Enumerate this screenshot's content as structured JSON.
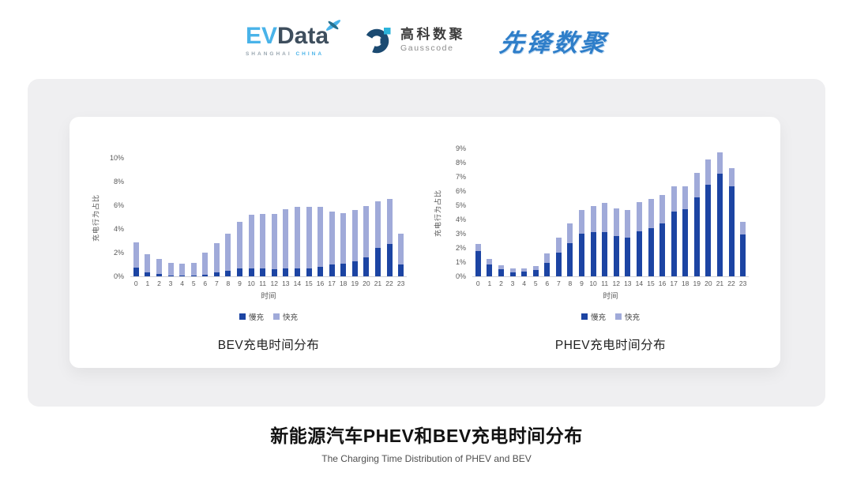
{
  "header": {
    "evdata": {
      "ev": "EV",
      "data": "Data",
      "sub_left": "SHANGHAI",
      "sub_right": "CHINA"
    },
    "gausscode": {
      "cn": "高科数聚",
      "en": "Gausscode"
    },
    "xianfeng": {
      "text": "先锋数聚"
    }
  },
  "footer": {
    "title": "新能源汽车PHEV和BEV充电时间分布",
    "subtitle": "The Charging Time Distribution of PHEV and BEV"
  },
  "colors": {
    "slow_charge": "#1c44a3",
    "fast_charge": "#a0aad9",
    "panel_gray": "#efeff1",
    "evdata_blue": "#49b3e9",
    "evdata_navy": "#3e4e5d",
    "xianfeng_blue": "#2e7ec9"
  },
  "chart_data": [
    {
      "type": "bar",
      "stacked": true,
      "title": "BEV充电时间分布",
      "ylabel": "充电行为占比",
      "xlabel": "时间",
      "legend_position": "bottom",
      "grid": false,
      "categories": [
        "0",
        "1",
        "2",
        "3",
        "4",
        "5",
        "6",
        "7",
        "8",
        "9",
        "10",
        "11",
        "12",
        "13",
        "14",
        "15",
        "16",
        "17",
        "18",
        "19",
        "20",
        "21",
        "22",
        "23"
      ],
      "ylim": [
        0,
        10
      ],
      "ytick_values": [
        0,
        2,
        4,
        6,
        8,
        10
      ],
      "ytick_labels": [
        "0%",
        "2%",
        "4%",
        "6%",
        "8%",
        "10%"
      ],
      "series": [
        {
          "name": "慢充",
          "color": "#1c44a3",
          "values": [
            0.75,
            0.35,
            0.2,
            0.1,
            0.1,
            0.1,
            0.15,
            0.35,
            0.5,
            0.7,
            0.65,
            0.7,
            0.6,
            0.65,
            0.7,
            0.7,
            0.8,
            1.0,
            1.1,
            1.3,
            1.6,
            2.4,
            2.75,
            1.0
          ]
        },
        {
          "name": "快充",
          "color": "#a0aad9",
          "values": [
            2.15,
            1.55,
            1.3,
            1.05,
            0.95,
            1.05,
            1.85,
            2.45,
            3.1,
            3.9,
            4.55,
            4.55,
            4.7,
            5.0,
            5.15,
            5.15,
            5.1,
            4.5,
            4.25,
            4.3,
            4.35,
            3.95,
            3.8,
            2.6
          ]
        }
      ]
    },
    {
      "type": "bar",
      "stacked": true,
      "title": "PHEV充电时间分布",
      "ylabel": "充电行为占比",
      "xlabel": "时间",
      "legend_position": "bottom",
      "grid": false,
      "categories": [
        "0",
        "1",
        "2",
        "3",
        "4",
        "5",
        "6",
        "7",
        "8",
        "9",
        "10",
        "11",
        "12",
        "13",
        "14",
        "15",
        "16",
        "17",
        "18",
        "19",
        "20",
        "21",
        "22",
        "23"
      ],
      "ylim": [
        0,
        9
      ],
      "ytick_values": [
        0,
        1,
        2,
        3,
        4,
        5,
        6,
        7,
        8,
        9
      ],
      "ytick_labels": [
        "0%",
        "1%",
        "2%",
        "3%",
        "4%",
        "5%",
        "6%",
        "7%",
        "8%",
        "9%"
      ],
      "series": [
        {
          "name": "慢充",
          "color": "#1c44a3",
          "values": [
            1.8,
            0.85,
            0.5,
            0.3,
            0.35,
            0.45,
            0.95,
            1.65,
            2.35,
            3.0,
            3.1,
            3.1,
            2.85,
            2.75,
            3.15,
            3.4,
            3.7,
            4.55,
            4.7,
            5.55,
            6.45,
            7.2,
            6.35,
            2.95
          ]
        },
        {
          "name": "快充",
          "color": "#a0aad9",
          "values": [
            0.5,
            0.35,
            0.3,
            0.25,
            0.2,
            0.25,
            0.65,
            1.05,
            1.35,
            1.65,
            1.85,
            2.05,
            1.95,
            1.9,
            2.05,
            2.05,
            2.0,
            1.8,
            1.65,
            1.75,
            1.75,
            1.5,
            1.25,
            0.9
          ]
        }
      ]
    }
  ]
}
